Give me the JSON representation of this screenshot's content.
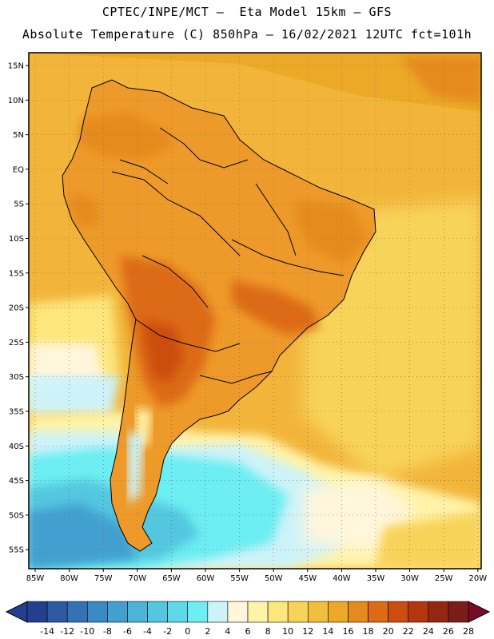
{
  "header": {
    "title_line1": "CPTEC/INPE/MCT –  Eta Model 15km – GFS",
    "title_line2": "Absolute Temperature (C) 850hPa – 16/02/2021 12UTC fct=101h"
  },
  "map": {
    "lat_labels": [
      "15N",
      "10N",
      "5N",
      "EQ",
      "5S",
      "10S",
      "15S",
      "20S",
      "25S",
      "30S",
      "35S",
      "40S",
      "45S",
      "50S",
      "55S"
    ],
    "lon_labels": [
      "85W",
      "80W",
      "75W",
      "70W",
      "65W",
      "60W",
      "55W",
      "50W",
      "45W",
      "40W",
      "35W",
      "30W",
      "25W",
      "20W"
    ],
    "ocean_color": "#f2b53a",
    "land_color": "#ee9a2a"
  },
  "colorbar": {
    "levels": [
      "-14",
      "-12",
      "-10",
      "-8",
      "-6",
      "-4",
      "-2",
      "0",
      "2",
      "4",
      "6",
      "8",
      "10",
      "12",
      "14",
      "16",
      "18",
      "20",
      "22",
      "24",
      "26",
      "28"
    ],
    "colors": [
      "#233f8f",
      "#2c5aa3",
      "#3472b5",
      "#3a89c4",
      "#42a0d0",
      "#4bb4d8",
      "#53c7e0",
      "#5ed9e8",
      "#6ceef2",
      "#cdf3f8",
      "#fff6dc",
      "#fff3a8",
      "#fde67c",
      "#f8d35a",
      "#f2be3d",
      "#eca927",
      "#e58a1c",
      "#dd6a14",
      "#cc4d10",
      "#b3360e",
      "#952710",
      "#7a1d18"
    ],
    "low_arrow_color": "#233f8f",
    "high_arrow_color": "#7a0a2a"
  }
}
